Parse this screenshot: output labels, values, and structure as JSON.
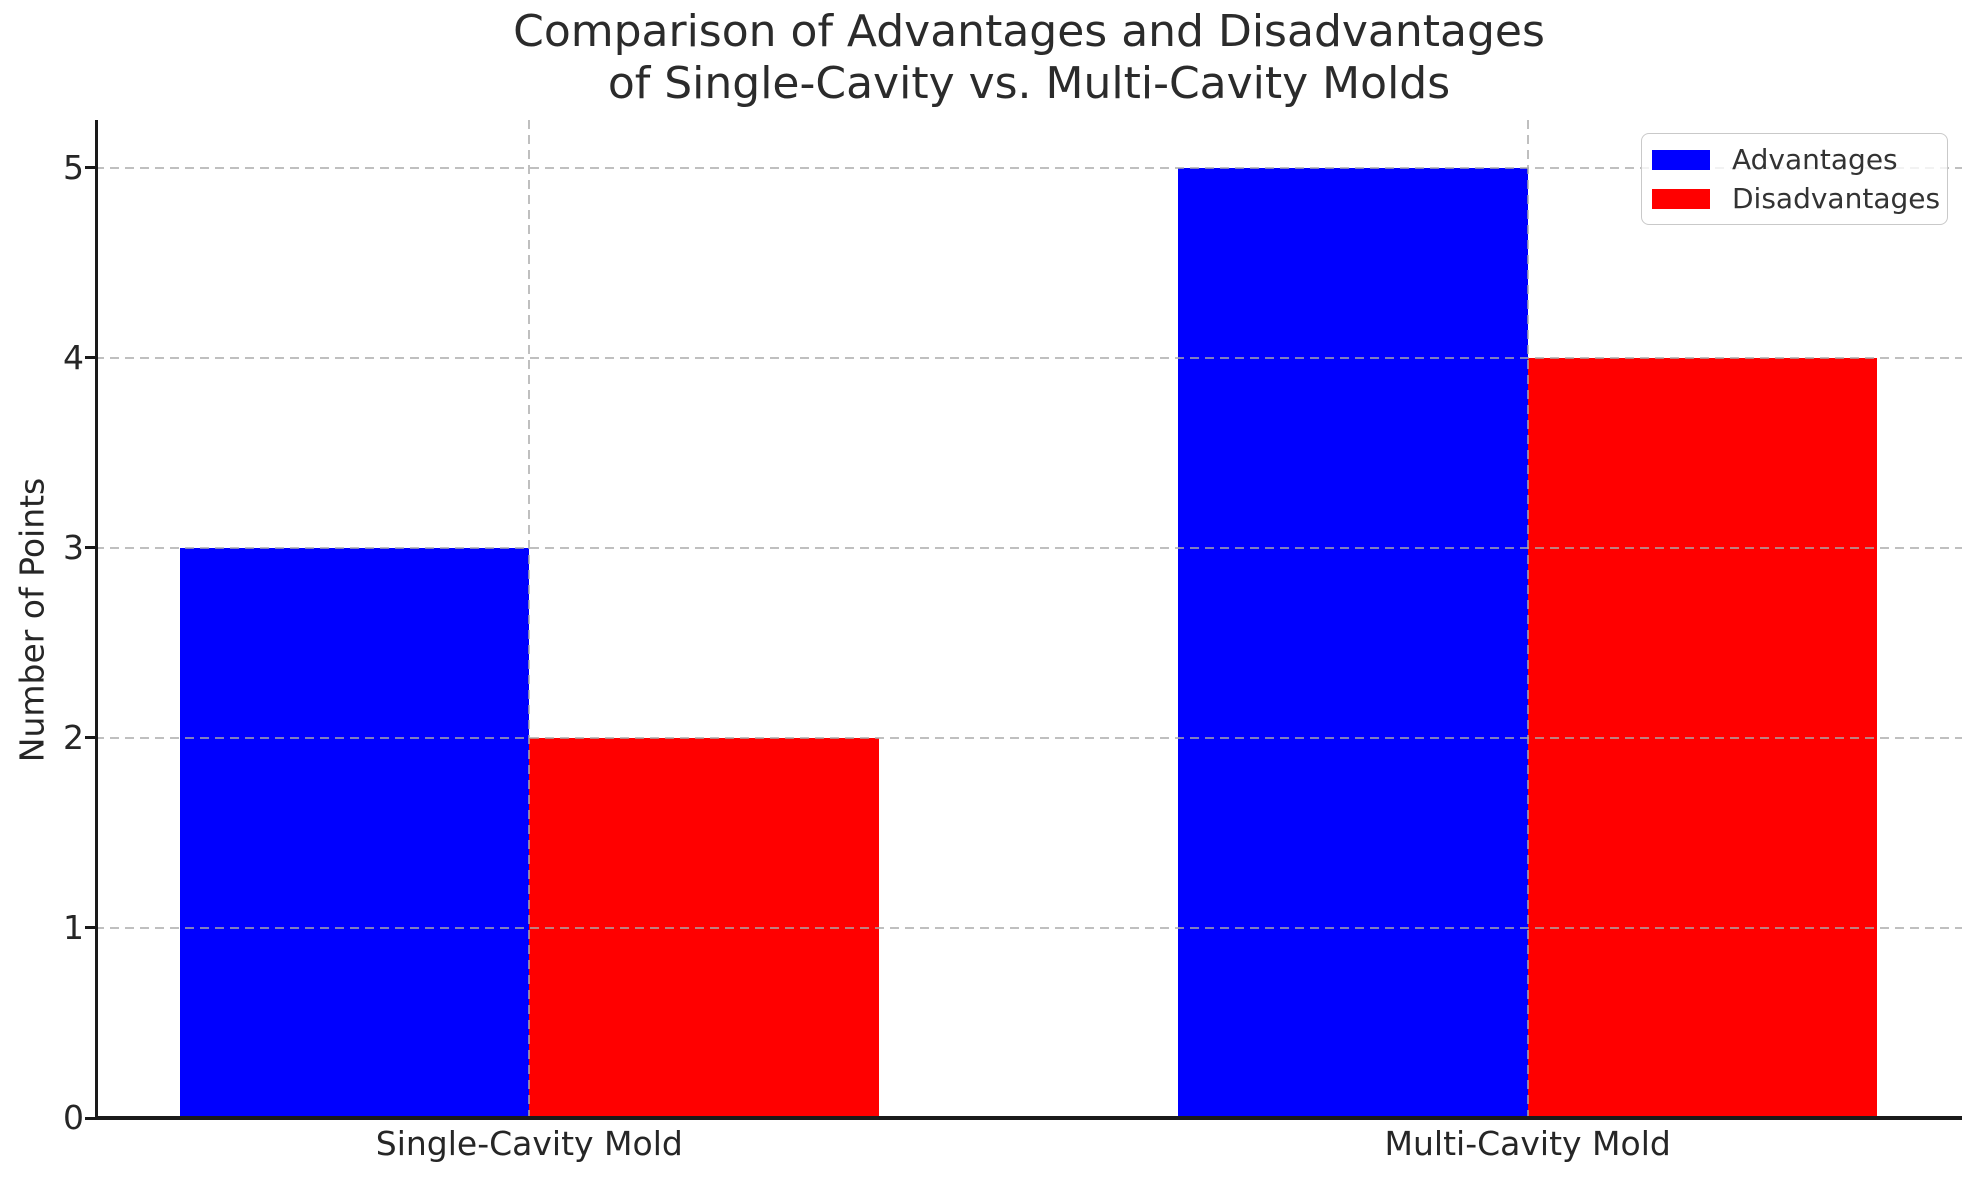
{
  "title": {
    "line1": "Comparison of Advantages and Disadvantages",
    "line2": "of Single-Cavity vs. Multi-Cavity Molds"
  },
  "chart_data": {
    "type": "bar",
    "title": "Comparison of Advantages and Disadvantages of Single-Cavity vs. Multi-Cavity Molds",
    "categories": [
      "Single-Cavity Mold",
      "Multi-Cavity Mold"
    ],
    "series": [
      {
        "name": "Advantages",
        "color": "#0000ff",
        "values": [
          3,
          5
        ]
      },
      {
        "name": "Disadvantages",
        "color": "#ff0000",
        "values": [
          2,
          4
        ]
      }
    ],
    "xlabel": "",
    "ylabel": "Number of Points",
    "y_ticks": [
      0,
      1,
      2,
      3,
      4,
      5
    ],
    "ylim": [
      0,
      5.25
    ],
    "xlim": [
      -0.435,
      1.435
    ],
    "bar_width": 0.35,
    "grid": "dashed gray, horizontal at integer y values and vertical at category ticks, drawn above bars",
    "legend_position": "upper right"
  }
}
